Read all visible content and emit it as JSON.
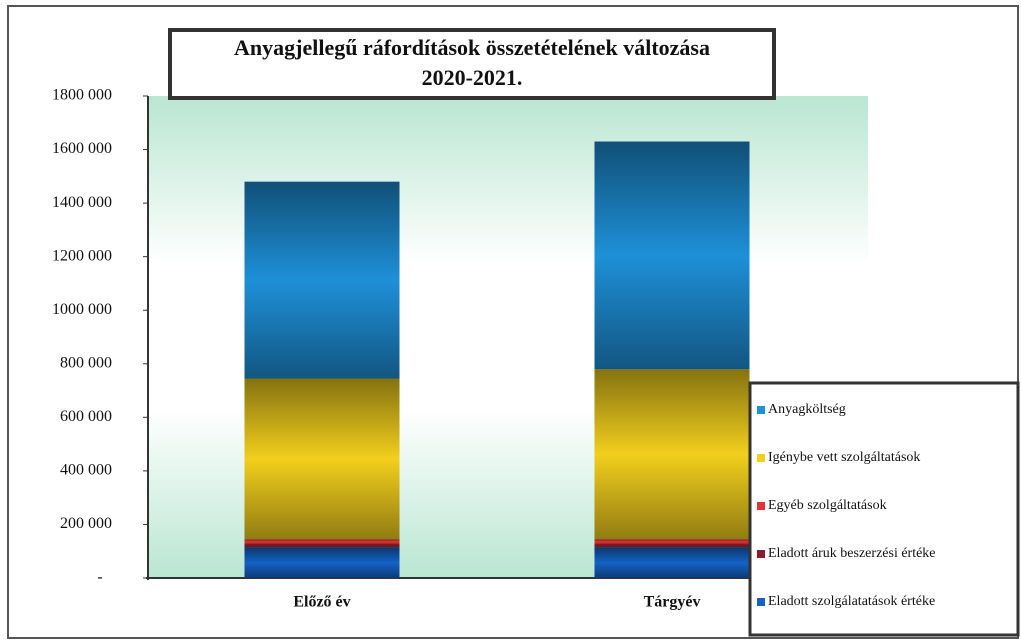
{
  "chart_data": {
    "type": "stacked_bar",
    "title": "Anyagjellegű ráfordítások összetételének változása 2020-2021.",
    "categories": [
      "Előző év",
      "Tárgyév"
    ],
    "series": [
      {
        "name": "Eladott szolgálatatások értéke",
        "color": "#1462c4",
        "values": [
          115000,
          115000
        ]
      },
      {
        "name": "Eladott áruk beszerzési értéke",
        "color": "#8b1a2a",
        "values": [
          10000,
          10000
        ]
      },
      {
        "name": "Egyéb szolgáltatások",
        "color": "#e03535",
        "values": [
          20000,
          20000
        ]
      },
      {
        "name": "Igénybe vett szolgáltatások",
        "color": "#f2cf1d",
        "values": [
          600000,
          635000
        ]
      },
      {
        "name": "Anyagköltség",
        "color": "#1e90d8",
        "values": [
          735000,
          850000
        ]
      }
    ],
    "ylim": [
      0,
      1800000
    ],
    "yticks": [
      {
        "value": 0,
        "label": "-"
      },
      {
        "value": 200000,
        "label": "200 000"
      },
      {
        "value": 400000,
        "label": "400 000"
      },
      {
        "value": 600000,
        "label": "600 000"
      },
      {
        "value": 800000,
        "label": "800 000"
      },
      {
        "value": 1000000,
        "label": "1000 000"
      },
      {
        "value": 1200000,
        "label": "1200 000"
      },
      {
        "value": 1400000,
        "label": "1400 000"
      },
      {
        "value": 1600000,
        "label": "1600 000"
      },
      {
        "value": 1800000,
        "label": "1800 000"
      }
    ],
    "legend": "right"
  }
}
